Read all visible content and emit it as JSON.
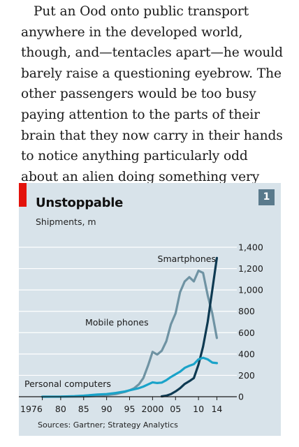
{
  "article": {
    "paragraph": "Put an Ood onto public transport anywhere in the developed world, though, and—tentacles apart—he would barely raise a questioning eyebrow. The other passengers would be too busy paying attention to the parts of their brain that they now carry in their hands to notice anything particularly odd about an alien doing something very similar."
  },
  "chart": {
    "number": "1",
    "source": "Sources: Gartner; Strategy Analytics"
  },
  "colors": {
    "accent_red": "#e3120b",
    "panel_bg": "#d8e3ea",
    "badge_bg": "#5a7a8c",
    "mobile_phones": "#6f93a3",
    "smartphones": "#0e3a52",
    "personal_computers": "#1aa3c9"
  },
  "chart_data": {
    "type": "line",
    "title": "Unstoppable",
    "subtitle": "Shipments, m",
    "ylim": [
      0,
      1400
    ],
    "xlim": [
      1975,
      2015
    ],
    "y_ticks": [
      0,
      200,
      400,
      600,
      800,
      1000,
      1200,
      1400
    ],
    "y_tick_labels": [
      "0",
      "200",
      "400",
      "600",
      "800",
      "1,000",
      "1,200",
      "1,400"
    ],
    "x_ticks": [
      1976,
      1980,
      1985,
      1990,
      1995,
      2000,
      2005,
      2010,
      2014
    ],
    "x_tick_labels": [
      "1976",
      "80",
      "85",
      "90",
      "95",
      "2000",
      "05",
      "10",
      "14"
    ],
    "grid": true,
    "source": "Sources: Gartner; Strategy Analytics",
    "series": [
      {
        "name": "Mobile phones",
        "color": "#6f93a3",
        "x": [
          1976,
          1980,
          1984,
          1986,
          1988,
          1990,
          1992,
          1994,
          1995,
          1996,
          1997,
          1998,
          1999,
          2000,
          2001,
          2002,
          2003,
          2004,
          2005,
          2006,
          2007,
          2008,
          2009,
          2010,
          2011,
          2012,
          2013,
          2014
        ],
        "values": [
          0,
          0,
          1,
          3,
          8,
          15,
          25,
          45,
          60,
          80,
          115,
          175,
          290,
          420,
          395,
          430,
          520,
          680,
          780,
          980,
          1080,
          1120,
          1080,
          1180,
          1160,
          950,
          780,
          550
        ]
      },
      {
        "name": "Smartphones",
        "color": "#0e3a52",
        "x": [
          2002,
          2003,
          2004,
          2005,
          2006,
          2007,
          2008,
          2009,
          2010,
          2011,
          2012,
          2013,
          2014
        ],
        "values": [
          3,
          10,
          25,
          50,
          80,
          120,
          145,
          175,
          300,
          470,
          700,
          1000,
          1300
        ]
      },
      {
        "name": "Personal computers",
        "color": "#1aa3c9",
        "x": [
          1976,
          1980,
          1983,
          1985,
          1988,
          1990,
          1992,
          1994,
          1995,
          1996,
          1997,
          1998,
          1999,
          2000,
          2001,
          2002,
          2003,
          2004,
          2005,
          2006,
          2007,
          2008,
          2009,
          2010,
          2011,
          2012,
          2013,
          2014
        ],
        "values": [
          0,
          1,
          5,
          10,
          20,
          25,
          35,
          50,
          60,
          70,
          80,
          95,
          115,
          135,
          128,
          132,
          155,
          185,
          210,
          235,
          270,
          290,
          305,
          350,
          365,
          350,
          320,
          315
        ]
      }
    ]
  }
}
